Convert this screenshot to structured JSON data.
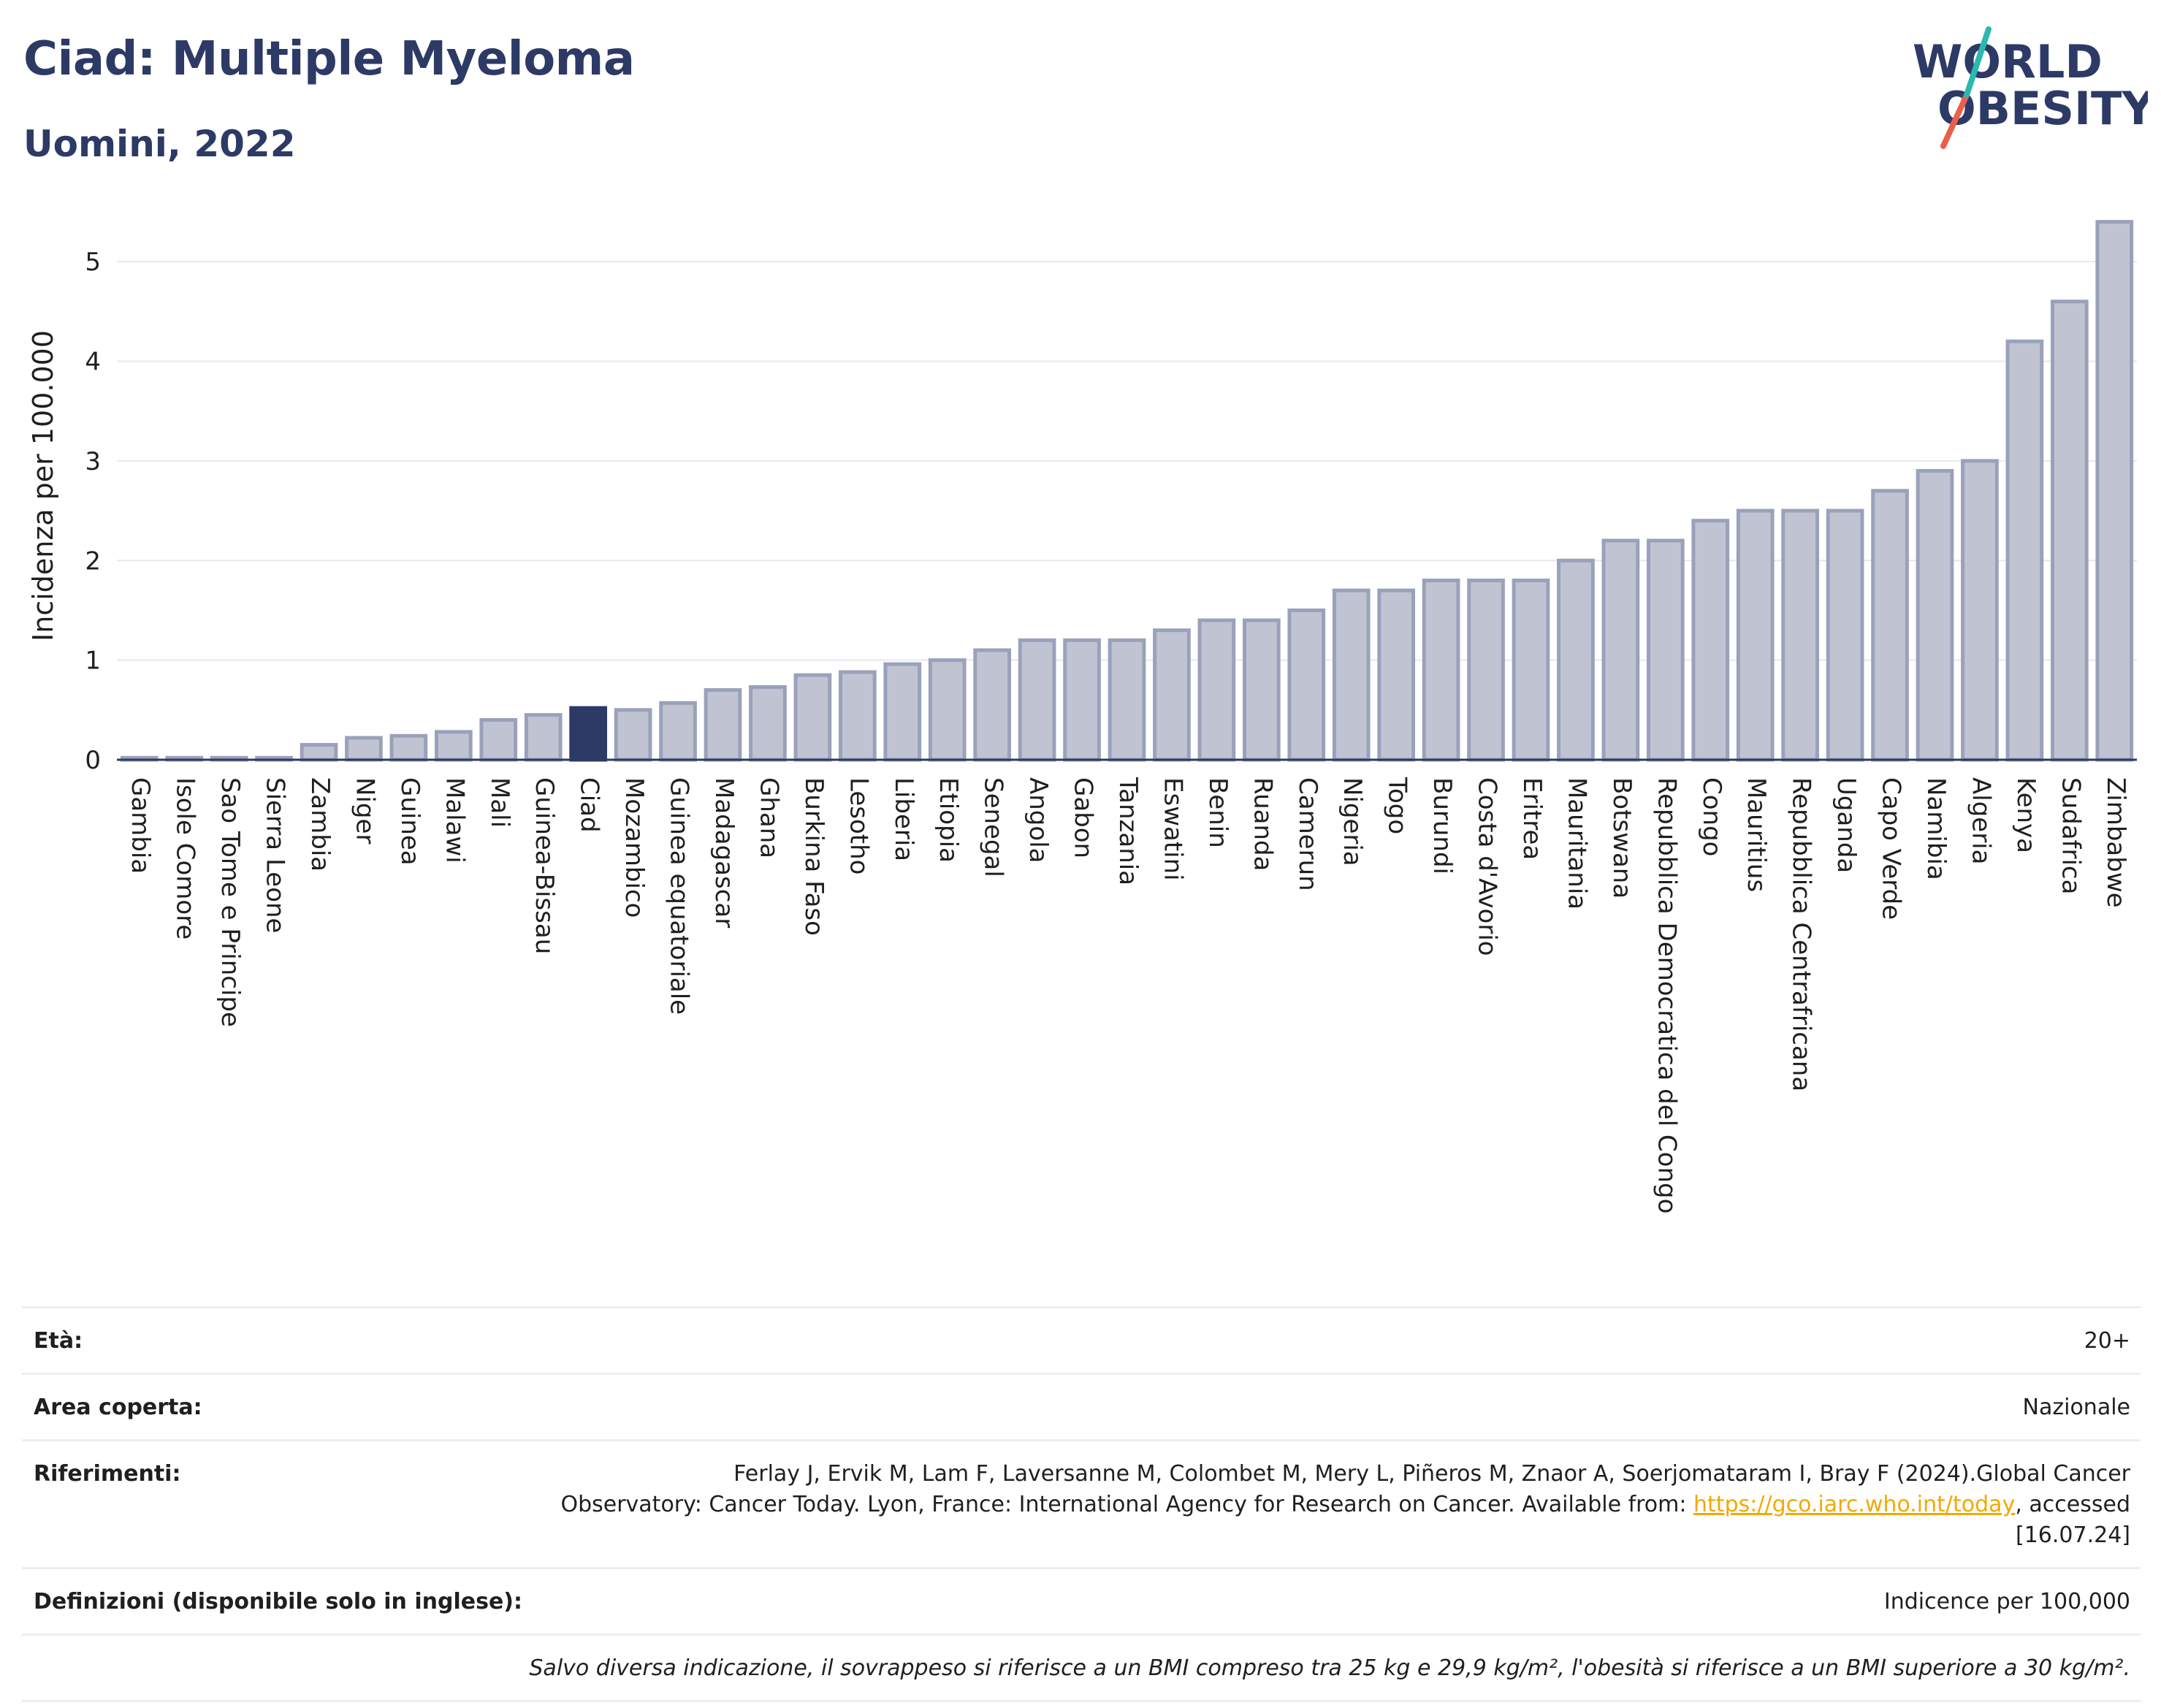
{
  "header": {
    "title": "Ciad: Multiple Myeloma",
    "subtitle": "Uomini, 2022"
  },
  "logo": {
    "line1": "WORLD",
    "line2": "OBESITY",
    "colors": {
      "text": "#2d3a66",
      "slash_red": "#e8604c",
      "slash_teal": "#2ab8b0"
    }
  },
  "chart_data": {
    "type": "bar",
    "ylabel": "Incidenza per 100.000",
    "ylim": [
      0,
      5.5
    ],
    "yticks": [
      0,
      1,
      2,
      3,
      4,
      5
    ],
    "grid": true,
    "highlight": "Ciad",
    "colors": {
      "bar": "#c0c4d2",
      "bar_edge": "#9aa1ba",
      "highlight": "#2d3a66"
    },
    "categories": [
      "Gambia",
      "Isole Comore",
      "Sao Tome e Principe",
      "Sierra Leone",
      "Zambia",
      "Niger",
      "Guinea",
      "Malawi",
      "Mali",
      "Guinea-Bissau",
      "Ciad",
      "Mozambico",
      "Guinea equatoriale",
      "Madagascar",
      "Ghana",
      "Burkina Faso",
      "Lesotho",
      "Liberia",
      "Etiopia",
      "Senegal",
      "Angola",
      "Gabon",
      "Tanzania",
      "Eswatini",
      "Benin",
      "Ruanda",
      "Camerun",
      "Nigeria",
      "Togo",
      "Burundi",
      "Costa d'Avorio",
      "Eritrea",
      "Mauritania",
      "Botswana",
      "Repubblica Democratica del Congo",
      "Congo",
      "Mauritius",
      "Repubblica Centrafricana",
      "Uganda",
      "Capo Verde",
      "Namibia",
      "Algeria",
      "Kenya",
      "Sudafrica",
      "Zimbabwe"
    ],
    "values": [
      0.02,
      0.02,
      0.02,
      0.02,
      0.15,
      0.22,
      0.24,
      0.28,
      0.4,
      0.45,
      0.52,
      0.5,
      0.57,
      0.7,
      0.73,
      0.85,
      0.88,
      0.96,
      1.0,
      1.1,
      1.2,
      1.2,
      1.2,
      1.3,
      1.4,
      1.4,
      1.5,
      1.7,
      1.7,
      1.8,
      1.8,
      1.8,
      2.0,
      2.2,
      2.2,
      2.4,
      2.5,
      2.5,
      2.5,
      2.7,
      2.9,
      3.0,
      4.2,
      4.6,
      5.4
    ]
  },
  "info": {
    "eta": {
      "label": "Età:",
      "value": "20+"
    },
    "area": {
      "label": "Area coperta:",
      "value": "Nazionale"
    },
    "riferimenti": {
      "label": "Riferimenti:",
      "text_line1": "Ferlay J, Ervik M, Lam F, Laversanne M, Colombet M, Mery L, Piñeros M, Znaor A, Soerjomataram I, Bray F (2024).Global Cancer",
      "text_line2": "Observatory: Cancer Today. Lyon, France: International Agency for Research on Cancer. Available from: ",
      "link": "https://gco.iarc.who.int/today",
      "text_line3": ", accessed [16.07.24]"
    },
    "definizioni": {
      "label": "Definizioni (disponibile solo in inglese):",
      "value": "Indicence per 100,000"
    },
    "note": "Salvo diversa indicazione, il sovrappeso si riferisce a un BMI compreso tra 25 kg e 29,9 kg/m², l'obesità si riferisce a un BMI superiore a 30 kg/m²."
  }
}
